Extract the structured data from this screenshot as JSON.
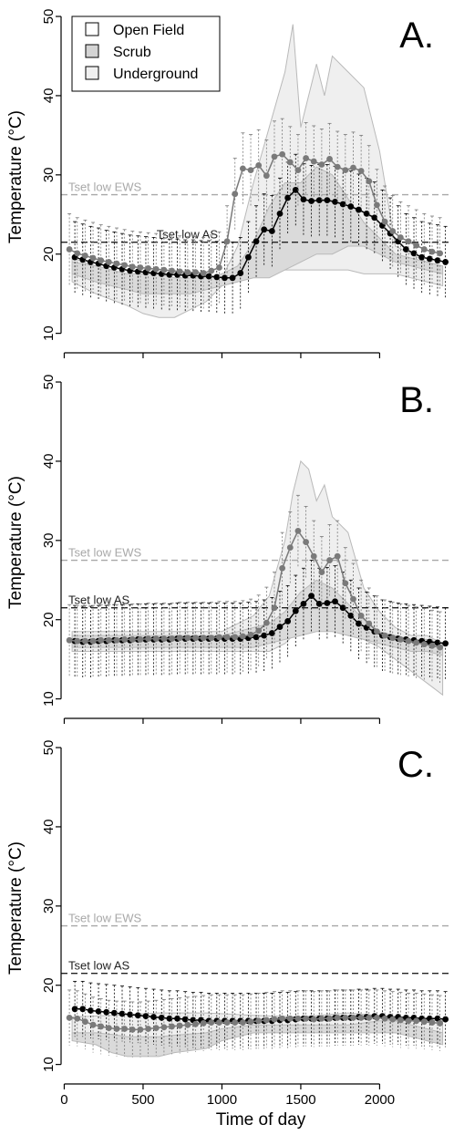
{
  "figure": {
    "x_axis_label": "Time of day",
    "y_axis_label": "Temperature (°C)",
    "legend": {
      "placement": "top-left",
      "entries": [
        {
          "label": "Open Field",
          "fill": "#ffffff"
        },
        {
          "label": "Scrub",
          "fill": "#d4d4d4"
        },
        {
          "label": "Underground",
          "fill": "#f0f0f0"
        }
      ]
    }
  },
  "colors": {
    "dark_series": "#000000",
    "grey_series": "#7a7a7a",
    "band_light": "#efefef",
    "band_mid": "#dadada",
    "band_edge": "#b9b9b9",
    "ews_line": "#a8a8a8",
    "as_line": "#222222"
  },
  "chart_data": [
    {
      "type": "line",
      "panel_label": "A.",
      "x": [
        50,
        100,
        150,
        200,
        250,
        300,
        350,
        400,
        450,
        500,
        550,
        600,
        650,
        700,
        750,
        800,
        850,
        900,
        950,
        1000,
        1050,
        1100,
        1150,
        1200,
        1250,
        1300,
        1350,
        1400,
        1450,
        1500,
        1550,
        1600,
        1650,
        1700,
        1750,
        1800,
        1850,
        1900,
        1950,
        2000,
        2050,
        2100,
        2150,
        2200,
        2250,
        2300,
        2350,
        2400
      ],
      "xlim": [
        -20,
        2460
      ],
      "ylim": [
        8,
        51.5
      ],
      "xticks": [
        {
          "value": 0,
          "label": "0"
        },
        {
          "value": 500,
          "label": "500"
        },
        {
          "value": 1000,
          "label": "1000"
        },
        {
          "value": 1500,
          "label": "1500"
        },
        {
          "value": 2000,
          "label": "2000"
        }
      ],
      "yticks": [
        {
          "value": 10,
          "label": "10"
        },
        {
          "value": 20,
          "label": "20"
        },
        {
          "value": 30,
          "label": "30"
        },
        {
          "value": 40,
          "label": "40"
        },
        {
          "value": 50,
          "label": "50"
        }
      ],
      "series": [
        {
          "role": "dark",
          "values": [
            19.6,
            19.3,
            19.0,
            18.8,
            18.5,
            18.3,
            18.1,
            17.9,
            17.8,
            17.7,
            17.6,
            17.5,
            17.4,
            17.4,
            17.3,
            17.3,
            17.2,
            17.2,
            17.1,
            17.0,
            17.0,
            17.6,
            19.6,
            21.6,
            23.1,
            22.9,
            25.1,
            27.1,
            28.1,
            26.9,
            26.7,
            26.8,
            26.8,
            26.6,
            26.3,
            26.0,
            25.6,
            25.1,
            24.6,
            23.6,
            22.6,
            21.6,
            20.6,
            20.1,
            19.6,
            19.4,
            19.2,
            19.0
          ],
          "error_half": 4.5
        },
        {
          "role": "grey",
          "values": [
            20.6,
            20.1,
            19.8,
            19.5,
            19.2,
            19.0,
            18.8,
            18.6,
            18.4,
            18.3,
            18.2,
            18.1,
            18.0,
            17.9,
            17.8,
            17.7,
            17.7,
            17.6,
            17.9,
            18.3,
            21.6,
            27.6,
            30.8,
            30.6,
            31.2,
            29.9,
            32.3,
            32.6,
            31.6,
            30.6,
            32.1,
            31.7,
            31.3,
            32.0,
            31.0,
            30.6,
            30.9,
            30.5,
            29.2,
            26.2,
            24.1,
            22.9,
            22.1,
            21.6,
            21.1,
            20.6,
            20.3,
            20.1
          ],
          "error_half": 4.5
        }
      ],
      "bands": [
        {
          "role": "light",
          "x": [
            50,
            200,
            400,
            500,
            600,
            700,
            800,
            900,
            1000,
            1100,
            1200,
            1300,
            1400,
            1450,
            1500,
            1600,
            1650,
            1700,
            1800,
            1900,
            2000,
            2100,
            2200,
            2300,
            2400
          ],
          "upper": [
            19.5,
            18.5,
            17.5,
            17,
            16.7,
            16.5,
            16.5,
            16.8,
            17,
            21,
            29,
            36,
            43,
            49,
            36,
            44,
            40,
            45,
            43,
            41,
            33,
            21,
            20,
            19,
            18.5
          ],
          "lower": [
            16.5,
            15,
            13.5,
            12.5,
            12,
            12,
            13,
            14,
            16,
            16.5,
            17.5,
            18,
            18,
            18,
            18,
            18,
            18,
            18,
            18,
            17.5,
            17.5,
            17.5,
            17,
            16.5,
            16
          ]
        },
        {
          "role": "mid",
          "x": [
            50,
            200,
            400,
            500,
            600,
            700,
            800,
            900,
            1000,
            1100,
            1200,
            1300,
            1400,
            1500,
            1600,
            1700,
            1800,
            1900,
            2000,
            2100,
            2200,
            2300,
            2400
          ],
          "upper": [
            19,
            18.5,
            17.5,
            17.5,
            17.5,
            17,
            17,
            17,
            17.5,
            18.5,
            21.5,
            26,
            29,
            29,
            31,
            30,
            27,
            24,
            22,
            20,
            19.5,
            19,
            18.5
          ],
          "lower": [
            17.5,
            16.5,
            15.5,
            15,
            15,
            15,
            15,
            15.5,
            16,
            16.5,
            17,
            17,
            18,
            19,
            20,
            20,
            21,
            21,
            20,
            19,
            18.5,
            18,
            17.5
          ]
        }
      ],
      "reference_lines": [
        {
          "label": "Tset low EWS",
          "y": 27.5,
          "role": "ews"
        },
        {
          "label": "Tset low AS",
          "y": 21.5,
          "role": "as"
        }
      ]
    },
    {
      "type": "line",
      "panel_label": "B.",
      "x": [
        50,
        100,
        150,
        200,
        250,
        300,
        350,
        400,
        450,
        500,
        550,
        600,
        650,
        700,
        750,
        800,
        850,
        900,
        950,
        1000,
        1050,
        1100,
        1150,
        1200,
        1250,
        1300,
        1350,
        1400,
        1450,
        1500,
        1550,
        1600,
        1650,
        1700,
        1750,
        1800,
        1850,
        1900,
        1950,
        2000,
        2050,
        2100,
        2150,
        2200,
        2250,
        2300,
        2350,
        2400
      ],
      "xlim": [
        -20,
        2460
      ],
      "ylim": [
        8,
        51.5
      ],
      "xticks": [
        {
          "value": 0,
          "label": "0"
        },
        {
          "value": 500,
          "label": "500"
        },
        {
          "value": 1000,
          "label": "1000"
        },
        {
          "value": 1500,
          "label": "1500"
        },
        {
          "value": 2000,
          "label": "2000"
        }
      ],
      "yticks": [
        {
          "value": 10,
          "label": "10"
        },
        {
          "value": 20,
          "label": "20"
        },
        {
          "value": 30,
          "label": "30"
        },
        {
          "value": 40,
          "label": "40"
        },
        {
          "value": 50,
          "label": "50"
        }
      ],
      "series": [
        {
          "role": "dark",
          "values": [
            17.3,
            17.2,
            17.2,
            17.3,
            17.3,
            17.4,
            17.4,
            17.4,
            17.5,
            17.5,
            17.5,
            17.5,
            17.5,
            17.6,
            17.6,
            17.6,
            17.6,
            17.6,
            17.6,
            17.6,
            17.6,
            17.6,
            17.7,
            17.8,
            18.0,
            18.3,
            19.1,
            19.8,
            21.1,
            22.0,
            23.0,
            22.0,
            22.1,
            22.3,
            21.5,
            20.5,
            19.5,
            19.0,
            18.5,
            18.0,
            17.8,
            17.6,
            17.5,
            17.4,
            17.3,
            17.2,
            17.1,
            17.0
          ],
          "error_half": 4.5
        },
        {
          "role": "grey",
          "values": [
            17.4,
            17.3,
            17.3,
            17.3,
            17.4,
            17.4,
            17.4,
            17.5,
            17.5,
            17.5,
            17.6,
            17.6,
            17.6,
            17.6,
            17.7,
            17.7,
            17.7,
            17.7,
            17.7,
            17.8,
            17.8,
            17.8,
            17.9,
            18.1,
            18.6,
            19.6,
            21.5,
            26.5,
            29.1,
            31.2,
            29.8,
            28.0,
            26.0,
            27.5,
            28.0,
            24.6,
            22.6,
            20.5,
            19.5,
            18.5,
            18.0,
            17.7,
            17.5,
            17.3,
            17.1,
            16.9,
            16.7,
            16.5
          ],
          "error_half": 4.5
        }
      ],
      "bands": [
        {
          "role": "light",
          "x": [
            50,
            400,
            800,
            1000,
            1100,
            1200,
            1300,
            1400,
            1450,
            1500,
            1550,
            1600,
            1650,
            1700,
            1800,
            1900,
            2000,
            2100,
            2200,
            2300,
            2400
          ],
          "upper": [
            18.5,
            18.5,
            18.5,
            18.5,
            19.5,
            20.5,
            23,
            30,
            36,
            40,
            39,
            35,
            37,
            33,
            31,
            24,
            21,
            19,
            18,
            18,
            17
          ],
          "lower": [
            16,
            16,
            16,
            16,
            16,
            16,
            16,
            17,
            18,
            18.5,
            19,
            19,
            19,
            19,
            18,
            17.5,
            16.5,
            15,
            13.5,
            12,
            10.5
          ]
        },
        {
          "role": "mid",
          "x": [
            50,
            400,
            800,
            1000,
            1100,
            1200,
            1300,
            1400,
            1500,
            1600,
            1700,
            1800,
            1900,
            2000,
            2100,
            2200,
            2300,
            2400
          ],
          "upper": [
            18,
            18,
            18,
            18,
            18.5,
            19,
            19.5,
            21,
            23.5,
            25,
            24,
            22,
            20,
            18.5,
            18,
            17.5,
            17.5,
            17
          ],
          "lower": [
            16.5,
            16.5,
            16.5,
            16.5,
            16.5,
            16.5,
            17,
            17.5,
            18,
            18.5,
            18.5,
            18,
            17.5,
            17,
            16.5,
            16,
            16,
            15.5
          ]
        }
      ],
      "reference_lines": [
        {
          "label": "Tset low EWS",
          "y": 27.5,
          "role": "ews"
        },
        {
          "label": "Tset low AS",
          "y": 21.5,
          "role": "as"
        }
      ]
    },
    {
      "type": "line",
      "panel_label": "C.",
      "x": [
        50,
        100,
        150,
        200,
        250,
        300,
        350,
        400,
        450,
        500,
        550,
        600,
        650,
        700,
        750,
        800,
        850,
        900,
        950,
        1000,
        1050,
        1100,
        1150,
        1200,
        1250,
        1300,
        1350,
        1400,
        1450,
        1500,
        1550,
        1600,
        1650,
        1700,
        1750,
        1800,
        1850,
        1900,
        1950,
        2000,
        2050,
        2100,
        2150,
        2200,
        2250,
        2300,
        2350,
        2400
      ],
      "xlim": [
        -20,
        2460
      ],
      "ylim": [
        8,
        51.5
      ],
      "xticks": [
        {
          "value": 0,
          "label": "0"
        },
        {
          "value": 500,
          "label": "500"
        },
        {
          "value": 1000,
          "label": "1000"
        },
        {
          "value": 1500,
          "label": "1500"
        },
        {
          "value": 2000,
          "label": "2000"
        }
      ],
      "yticks": [
        {
          "value": 10,
          "label": "10"
        },
        {
          "value": 20,
          "label": "20"
        },
        {
          "value": 30,
          "label": "30"
        },
        {
          "value": 40,
          "label": "40"
        },
        {
          "value": 50,
          "label": "50"
        }
      ],
      "series": [
        {
          "role": "dark",
          "values": [
            17.0,
            17.0,
            16.8,
            16.7,
            16.6,
            16.5,
            16.4,
            16.3,
            16.2,
            16.1,
            16.0,
            15.9,
            15.8,
            15.8,
            15.7,
            15.6,
            15.6,
            15.5,
            15.5,
            15.5,
            15.5,
            15.5,
            15.5,
            15.5,
            15.5,
            15.5,
            15.6,
            15.6,
            15.7,
            15.8,
            15.8,
            15.8,
            15.8,
            15.9,
            15.9,
            15.9,
            16.0,
            16.0,
            16.1,
            16.1,
            16.0,
            16.0,
            15.9,
            15.9,
            15.8,
            15.8,
            15.8,
            15.7
          ],
          "error_half": 3.5
        },
        {
          "role": "grey",
          "values": [
            15.9,
            15.8,
            15.4,
            15.0,
            14.8,
            14.6,
            14.5,
            14.5,
            14.4,
            14.4,
            14.5,
            14.6,
            14.7,
            14.8,
            14.9,
            15.0,
            15.1,
            15.2,
            15.3,
            15.3,
            15.3,
            15.3,
            15.3,
            15.4,
            15.5,
            15.6,
            15.7,
            15.8,
            15.8,
            15.8,
            15.8,
            15.7,
            15.8,
            15.8,
            15.9,
            15.9,
            15.9,
            15.9,
            15.9,
            15.9,
            15.8,
            15.7,
            15.6,
            15.5,
            15.5,
            15.4,
            15.3,
            15.2
          ],
          "error_half": 3.5
        }
      ],
      "bands": [
        {
          "role": "light",
          "x": [
            50,
            300,
            600,
            900,
            1200,
            1500,
            1800,
            2100,
            2400
          ],
          "upper": [
            16,
            16.2,
            16.5,
            16.5,
            16.2,
            16,
            16.5,
            16,
            15.5
          ],
          "lower": [
            13.5,
            13,
            12.5,
            13,
            14,
            14.5,
            14.5,
            14,
            13.5
          ]
        },
        {
          "role": "mid",
          "x": [
            50,
            200,
            300,
            400,
            600,
            700,
            900,
            1000,
            1200,
            1500,
            1800,
            2000,
            2100,
            2200,
            2300,
            2400
          ],
          "upper": [
            14,
            14,
            13.8,
            13.5,
            13.5,
            13.7,
            14,
            14.5,
            15,
            15,
            15,
            15.5,
            15.5,
            15,
            14.5,
            14
          ],
          "lower": [
            13,
            12.5,
            11.5,
            11,
            11,
            11.5,
            12,
            13,
            14,
            14,
            14,
            14,
            14,
            13.5,
            13,
            12.5
          ]
        }
      ],
      "reference_lines": [
        {
          "label": "Tset low EWS",
          "y": 27.5,
          "role": "ews"
        },
        {
          "label": "Tset low AS",
          "y": 21.5,
          "role": "as"
        }
      ]
    }
  ]
}
